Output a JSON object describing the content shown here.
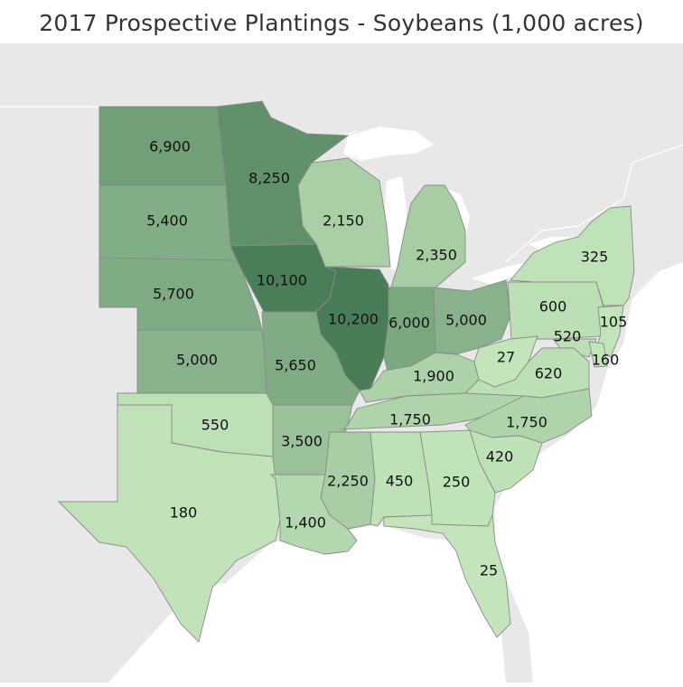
{
  "title": "2017 Prospective Plantings - Soybeans (1,000 acres)",
  "colors": {
    "low": "#c4e5bc",
    "high": "#487d58",
    "background_land": "#e8e8e8",
    "water": "#ffffff",
    "state_border": "#8a8a8a"
  },
  "states": [
    {
      "id": "ND",
      "value": 6900,
      "label": "6,900"
    },
    {
      "id": "MN",
      "value": 8250,
      "label": "8,250"
    },
    {
      "id": "SD",
      "value": 5400,
      "label": "5,400"
    },
    {
      "id": "WI",
      "value": 2150,
      "label": "2,150"
    },
    {
      "id": "MI",
      "value": 2350,
      "label": "2,350"
    },
    {
      "id": "NY",
      "value": 325,
      "label": "325"
    },
    {
      "id": "NE",
      "value": 5700,
      "label": "5,700"
    },
    {
      "id": "IA",
      "value": 10100,
      "label": "10,100"
    },
    {
      "id": "IL",
      "value": 10200,
      "label": "10,200"
    },
    {
      "id": "IN",
      "value": 6000,
      "label": "6,000"
    },
    {
      "id": "OH",
      "value": 5000,
      "label": "5,000"
    },
    {
      "id": "PA",
      "value": 600,
      "label": "600"
    },
    {
      "id": "NJ",
      "value": 105,
      "label": "105"
    },
    {
      "id": "MD",
      "value": 520,
      "label": "520"
    },
    {
      "id": "DE",
      "value": 160,
      "label": "160"
    },
    {
      "id": "KS",
      "value": 5000,
      "label": "5,000"
    },
    {
      "id": "MO",
      "value": 5650,
      "label": "5,650"
    },
    {
      "id": "KY",
      "value": 1900,
      "label": "1,900"
    },
    {
      "id": "WV",
      "value": 27,
      "label": "27"
    },
    {
      "id": "VA",
      "value": 620,
      "label": "620"
    },
    {
      "id": "OK",
      "value": 550,
      "label": "550"
    },
    {
      "id": "AR",
      "value": 3500,
      "label": "3,500"
    },
    {
      "id": "TN",
      "value": 1750,
      "label": "1,750"
    },
    {
      "id": "NC",
      "value": 1750,
      "label": "1,750"
    },
    {
      "id": "SC",
      "value": 420,
      "label": "420"
    },
    {
      "id": "MS",
      "value": 2250,
      "label": "2,250"
    },
    {
      "id": "AL",
      "value": 450,
      "label": "450"
    },
    {
      "id": "GA",
      "value": 250,
      "label": "250"
    },
    {
      "id": "TX",
      "value": 180,
      "label": "180"
    },
    {
      "id": "LA",
      "value": 1400,
      "label": "1,400"
    },
    {
      "id": "FL",
      "value": 25,
      "label": "25"
    }
  ]
}
